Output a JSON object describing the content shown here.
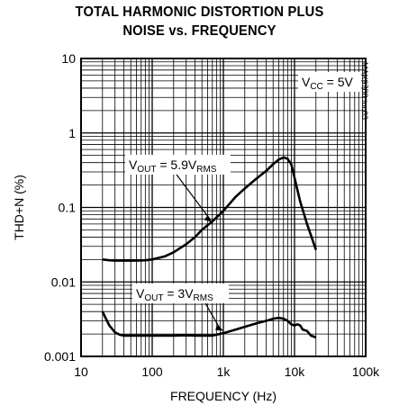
{
  "chart_data": {
    "type": "line",
    "title_line1": "TOTAL HARMONIC DISTORTION PLUS",
    "title_line2": "NOISE vs. FREQUENCY",
    "xlabel": "FREQUENCY (Hz)",
    "ylabel": "THD+N (%)",
    "x_scale": "log",
    "y_scale": "log",
    "xlim": [
      10,
      100000
    ],
    "ylim": [
      0.001,
      10
    ],
    "grid": true,
    "x_ticks": [
      "10",
      "100",
      "1k",
      "10k",
      "100k"
    ],
    "y_ticks": [
      "0.001",
      "0.01",
      "0.1",
      "1",
      "10"
    ],
    "condition": {
      "main": "V",
      "sub": "CC",
      "rest": " = 5V"
    },
    "side_id": "MAX9788 toc03",
    "series": [
      {
        "label": {
          "main": "V",
          "sub1": "OUT",
          "mid": " = 5.9V",
          "sub2": "RMS"
        },
        "x": [
          20,
          25,
          30,
          40,
          50,
          60,
          80,
          100,
          150,
          200,
          300,
          400,
          500,
          700,
          1000,
          1500,
          2000,
          3000,
          4000,
          5000,
          6000,
          7000,
          8000,
          9000,
          10000,
          12000,
          15000,
          20000
        ],
        "y": [
          0.02,
          0.0195,
          0.0193,
          0.0193,
          0.0193,
          0.0193,
          0.0195,
          0.02,
          0.022,
          0.025,
          0.032,
          0.04,
          0.05,
          0.065,
          0.09,
          0.14,
          0.18,
          0.25,
          0.31,
          0.38,
          0.44,
          0.47,
          0.45,
          0.38,
          0.25,
          0.12,
          0.06,
          0.027
        ]
      },
      {
        "label": {
          "main": "V",
          "sub1": "OUT",
          "mid": " = 3V",
          "sub2": "RMS"
        },
        "x": [
          20,
          22,
          25,
          30,
          35,
          40,
          50,
          60,
          80,
          100,
          150,
          200,
          300,
          400,
          500,
          700,
          1000,
          1500,
          2000,
          3000,
          4000,
          5000,
          6000,
          7000,
          8000,
          9000,
          10000,
          11000,
          12000,
          13000,
          15000,
          17000,
          20000
        ],
        "y": [
          0.004,
          0.0033,
          0.0026,
          0.0021,
          0.00195,
          0.0019,
          0.0019,
          0.0019,
          0.0019,
          0.0019,
          0.0019,
          0.0019,
          0.00192,
          0.0019,
          0.0019,
          0.0019,
          0.00205,
          0.0023,
          0.0025,
          0.0028,
          0.003,
          0.0032,
          0.0033,
          0.0032,
          0.003,
          0.0027,
          0.0026,
          0.0027,
          0.0026,
          0.0023,
          0.0022,
          0.0019,
          0.0018
        ]
      }
    ]
  }
}
